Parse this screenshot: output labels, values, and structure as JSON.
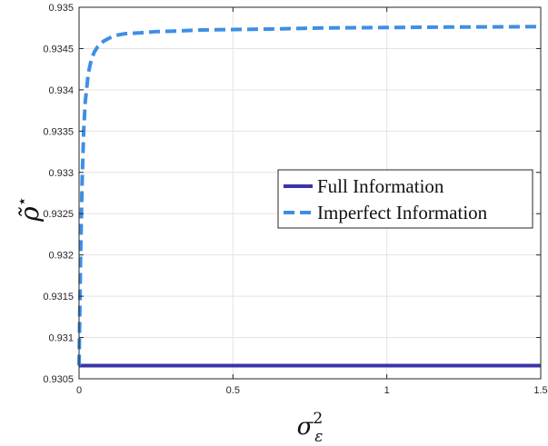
{
  "chart_data": {
    "type": "line",
    "xlabel": "σ",
    "xlabel_sup": "2",
    "xlabel_sub": "ε",
    "ylabel": "ρ̃",
    "ylabel_sup": "⋆",
    "xlim": [
      0,
      1.5
    ],
    "ylim": [
      0.9305,
      0.935
    ],
    "x_ticks": [
      0,
      0.5,
      1,
      1.5
    ],
    "x_tick_labels": [
      "0",
      "0.5",
      "1",
      "1.5"
    ],
    "y_ticks": [
      0.9305,
      0.931,
      0.9315,
      0.932,
      0.9325,
      0.933,
      0.9335,
      0.934,
      0.9345,
      0.935
    ],
    "y_tick_labels": [
      "0.9305",
      "0.931",
      "0.9315",
      "0.932",
      "0.9325",
      "0.933",
      "0.9335",
      "0.934",
      "0.9345",
      "0.935"
    ],
    "grid": true,
    "legend_position": "center-right",
    "series": [
      {
        "name": "Full Information",
        "color": "#3a35a8",
        "style": "solid",
        "x": [
          0,
          1.5
        ],
        "y": [
          0.93066,
          0.93066
        ]
      },
      {
        "name": "Imperfect Information",
        "color": "#3d8fe6",
        "style": "dashed",
        "x": [
          0,
          0.002,
          0.005,
          0.01,
          0.015,
          0.02,
          0.03,
          0.04,
          0.05,
          0.06,
          0.08,
          0.1,
          0.12,
          0.15,
          0.2,
          0.25,
          0.3,
          0.4,
          0.5,
          0.6,
          0.8,
          1.0,
          1.2,
          1.5
        ],
        "y": [
          0.93066,
          0.9312,
          0.932,
          0.9329,
          0.9335,
          0.93385,
          0.9342,
          0.93437,
          0.93446,
          0.93452,
          0.93459,
          0.93463,
          0.93466,
          0.93468,
          0.93469,
          0.934705,
          0.93471,
          0.934725,
          0.93473,
          0.934735,
          0.93475,
          0.934755,
          0.93476,
          0.934765
        ]
      }
    ]
  }
}
